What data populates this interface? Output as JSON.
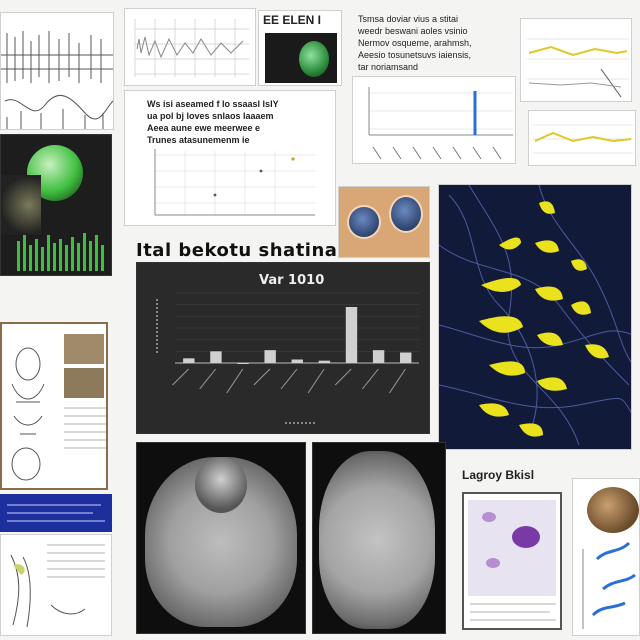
{
  "main_chart": {
    "heading": "Ital bekotu shatina",
    "title": "Var 1010",
    "chart_data": {
      "type": "bar",
      "values": [
        4,
        10,
        0,
        11,
        3,
        2,
        48,
        11,
        9
      ],
      "ylim": [
        0,
        60
      ],
      "grid": true
    }
  },
  "top_right_text": [
    "Tsmsa doviar vius a stitai",
    "weedr beswani aoles vsinio",
    "Nermov osqueme, arahmsh,",
    "Aeesio tosunetsuvs iaiensis,",
    "tar noriamsand"
  ],
  "mid_left_text": [
    "Ws isi aseamed f lo ssaasl lsIY",
    "ua pol bj loves snlaos laaaem",
    "Aeea aune ewe meerwee e",
    "Trunes atasunemenm ie"
  ],
  "top_center_label": "EE ELEN I",
  "bottom_right_label": "Lagroy Bkisl",
  "colors": {
    "accent_yellow": "#e9e21c",
    "accent_green": "#3fbf3f",
    "blue_panel": "#1c2f9c",
    "purple_stain": "#7a3aa6"
  }
}
